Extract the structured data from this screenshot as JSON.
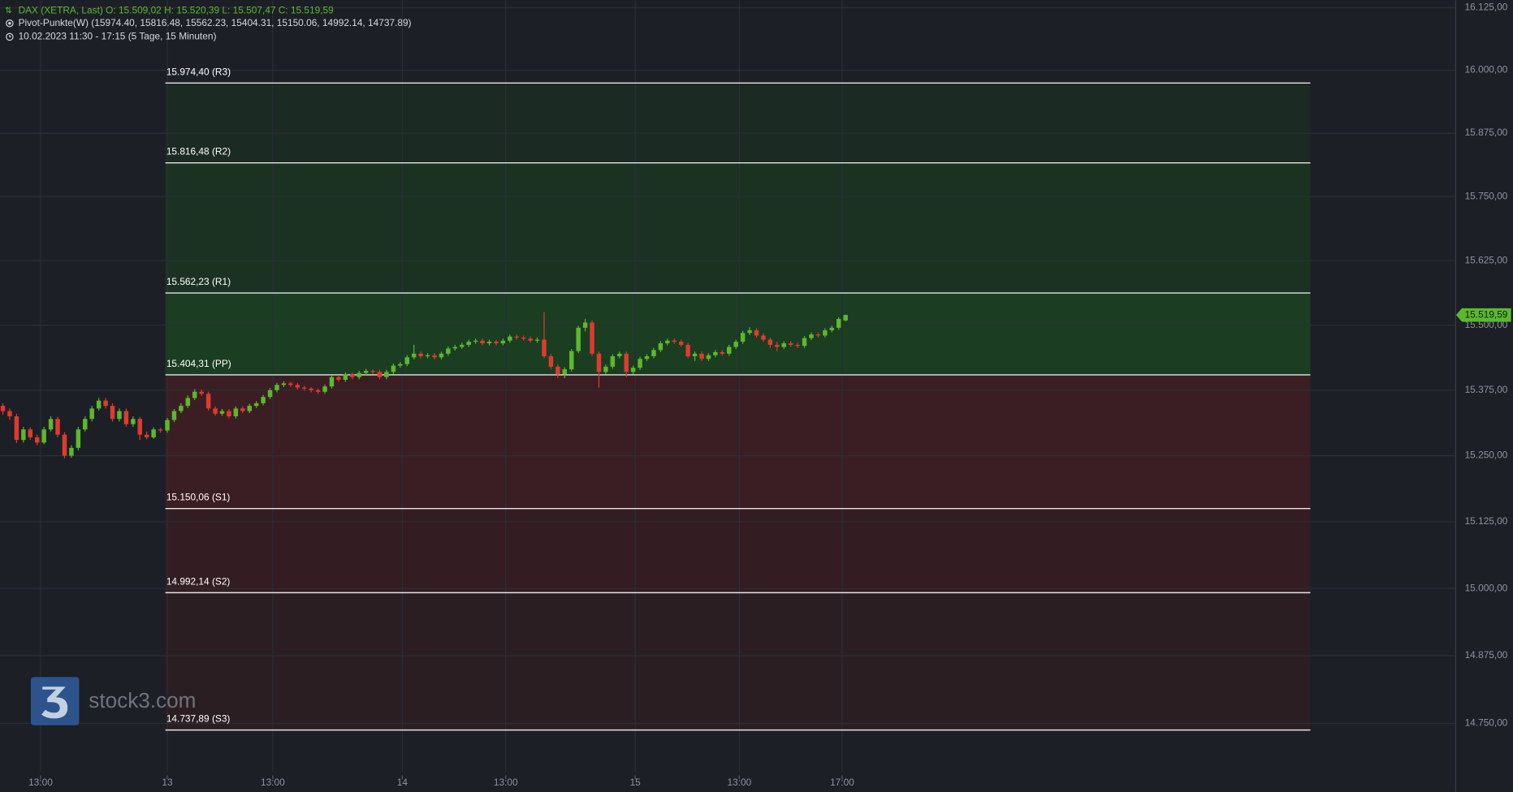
{
  "header": {
    "line1": "DAX (XETRA, Last)  O: 15.509,02  H: 15.520,39  L: 15.507,47  C: 15.519,59",
    "line2": "Pivot-Punkte(W)  (15974.40,  15816.48,  15562.23,  15404.31,  15150.06,  14992.14,  14737.89)",
    "line3": "10.02.2023 11:30 - 17:15   (5 Tage, 15 Minuten)"
  },
  "watermark": "stock3.com",
  "chart_data": {
    "type": "candlestick",
    "log_scale": true,
    "grid": true,
    "up_color": "#5cb82f",
    "down_color": "#e03a2e",
    "ylim": [
      14625,
      16140
    ],
    "xlim": [
      -0.42,
      211.97
    ],
    "yticks": [
      {
        "value": 16125,
        "label": "16.125,00"
      },
      {
        "value": 16000,
        "label": "16.000,00"
      },
      {
        "value": 15875,
        "label": "15.875,00"
      },
      {
        "value": 15750,
        "label": "15.750,00"
      },
      {
        "value": 15625,
        "label": "15.625,00"
      },
      {
        "value": 15500,
        "label": "15.500,00"
      },
      {
        "value": 15375,
        "label": "15.375,00"
      },
      {
        "value": 15250,
        "label": "15.250,00"
      },
      {
        "value": 15125,
        "label": "15.125,00"
      },
      {
        "value": 15000,
        "label": "15.000,00"
      },
      {
        "value": 14875,
        "label": "14.875,00"
      },
      {
        "value": 14750,
        "label": "14.750,00"
      }
    ],
    "xticks": [
      {
        "value": 5.5,
        "label": "13:00"
      },
      {
        "value": 24,
        "label": "13"
      },
      {
        "value": 39.4,
        "label": "13:00"
      },
      {
        "value": 58.3,
        "label": "14"
      },
      {
        "value": 73.4,
        "label": "13:00"
      },
      {
        "value": 92.3,
        "label": "15"
      },
      {
        "value": 107.5,
        "label": "13:00"
      },
      {
        "value": 122.5,
        "label": "17:00"
      }
    ],
    "levels": [
      {
        "value": 15974.4,
        "label": "15.974,40 (R3)"
      },
      {
        "value": 15816.48,
        "label": "15.816,48 (R2)"
      },
      {
        "value": 15562.23,
        "label": "15.562,23 (R1)"
      },
      {
        "value": 15404.31,
        "label": "15.404,31 (PP)"
      },
      {
        "value": 15150.06,
        "label": "15.150,06 (S1)"
      },
      {
        "value": 14992.14,
        "label": "14.992,14 (S2)"
      },
      {
        "value": 14737.89,
        "label": "14.737,89 (S3)"
      }
    ],
    "zone_colors": [
      "#1b2a22",
      "#1b3223",
      "#1b3d22",
      "#3b1e23",
      "#331d22",
      "#2b1e23"
    ],
    "current_price_label": "15.519,59",
    "candles": [
      [
        15345,
        15350,
        15328,
        15335
      ],
      [
        15335,
        15340,
        15318,
        15325
      ],
      [
        15325,
        15330,
        15274,
        15280
      ],
      [
        15280,
        15305,
        15275,
        15300
      ],
      [
        15300,
        15304,
        15280,
        15285
      ],
      [
        15285,
        15290,
        15270,
        15275
      ],
      [
        15275,
        15305,
        15272,
        15300
      ],
      [
        15300,
        15325,
        15296,
        15320
      ],
      [
        15320,
        15324,
        15285,
        15290
      ],
      [
        15290,
        15295,
        15245,
        15250
      ],
      [
        15250,
        15270,
        15246,
        15265
      ],
      [
        15265,
        15305,
        15260,
        15300
      ],
      [
        15300,
        15325,
        15296,
        15320
      ],
      [
        15320,
        15345,
        15315,
        15340
      ],
      [
        15340,
        15360,
        15336,
        15355
      ],
      [
        15355,
        15360,
        15340,
        15345
      ],
      [
        15345,
        15350,
        15315,
        15320
      ],
      [
        15320,
        15340,
        15315,
        15335
      ],
      [
        15335,
        15340,
        15305,
        15310
      ],
      [
        15310,
        15325,
        15305,
        15320
      ],
      [
        15320,
        15324,
        15280,
        15290
      ],
      [
        15290,
        15296,
        15281,
        15285
      ],
      [
        15285,
        15304,
        15282,
        15300
      ],
      [
        15300,
        15303,
        15294,
        15298
      ],
      [
        15298,
        15322,
        15294,
        15318
      ],
      [
        15318,
        15339,
        15314,
        15335
      ],
      [
        15335,
        15350,
        15331,
        15345
      ],
      [
        15345,
        15365,
        15341,
        15360
      ],
      [
        15360,
        15377,
        15356,
        15372
      ],
      [
        15372,
        15376,
        15364,
        15368
      ],
      [
        15368,
        15372,
        15336,
        15340
      ],
      [
        15340,
        15344,
        15326,
        15330
      ],
      [
        15330,
        15339,
        15326,
        15335
      ],
      [
        15335,
        15339,
        15321,
        15325
      ],
      [
        15325,
        15344,
        15321,
        15340
      ],
      [
        15340,
        15344,
        15331,
        15335
      ],
      [
        15335,
        15349,
        15331,
        15345
      ],
      [
        15345,
        15354,
        15341,
        15350
      ],
      [
        15350,
        15366,
        15346,
        15362
      ],
      [
        15362,
        15379,
        15358,
        15375
      ],
      [
        15375,
        15389,
        15371,
        15385
      ],
      [
        15385,
        15392,
        15381,
        15388
      ],
      [
        15388,
        15391,
        15381,
        15385
      ],
      [
        15385,
        15389,
        15376,
        15380
      ],
      [
        15380,
        15383,
        15374,
        15378
      ],
      [
        15378,
        15381,
        15371,
        15375
      ],
      [
        15375,
        15378,
        15368,
        15372
      ],
      [
        15372,
        15386,
        15368,
        15382
      ],
      [
        15382,
        15404,
        15378,
        15400
      ],
      [
        15400,
        15404,
        15391,
        15395
      ],
      [
        15395,
        15409,
        15391,
        15405
      ],
      [
        15405,
        15409,
        15396,
        15400
      ],
      [
        15400,
        15412,
        15396,
        15408
      ],
      [
        15408,
        15416,
        15404,
        15412
      ],
      [
        15412,
        15415,
        15406,
        15410
      ],
      [
        15410,
        15414,
        15396,
        15400
      ],
      [
        15400,
        15414,
        15396,
        15410
      ],
      [
        15410,
        15426,
        15406,
        15422
      ],
      [
        15422,
        15429,
        15418,
        15425
      ],
      [
        15425,
        15442,
        15421,
        15438
      ],
      [
        15438,
        15462,
        15434,
        15445
      ],
      [
        15445,
        15449,
        15436,
        15440
      ],
      [
        15440,
        15446,
        15436,
        15442
      ],
      [
        15442,
        15446,
        15434,
        15438
      ],
      [
        15438,
        15449,
        15434,
        15445
      ],
      [
        15445,
        15459,
        15441,
        15455
      ],
      [
        15455,
        15462,
        15451,
        15458
      ],
      [
        15458,
        15466,
        15454,
        15462
      ],
      [
        15462,
        15472,
        15458,
        15468
      ],
      [
        15468,
        15474,
        15464,
        15470
      ],
      [
        15470,
        15474,
        15461,
        15465
      ],
      [
        15465,
        15472,
        15461,
        15468
      ],
      [
        15468,
        15472,
        15461,
        15465
      ],
      [
        15465,
        15474,
        15461,
        15470
      ],
      [
        15470,
        15482,
        15466,
        15478
      ],
      [
        15478,
        15482,
        15472,
        15476
      ],
      [
        15476,
        15480,
        15470,
        15474
      ],
      [
        15474,
        15478,
        15466,
        15470
      ],
      [
        15470,
        15476,
        15466,
        15472
      ],
      [
        15472,
        15525,
        15436,
        15440
      ],
      [
        15440,
        15444,
        15416,
        15420
      ],
      [
        15420,
        15424,
        15398,
        15405
      ],
      [
        15405,
        15419,
        15398,
        15415
      ],
      [
        15415,
        15454,
        15411,
        15450
      ],
      [
        15450,
        15499,
        15446,
        15495
      ],
      [
        15495,
        15512,
        15488,
        15505
      ],
      [
        15505,
        15509,
        15441,
        15445
      ],
      [
        15445,
        15449,
        15380,
        15410
      ],
      [
        15410,
        15424,
        15406,
        15420
      ],
      [
        15420,
        15444,
        15416,
        15440
      ],
      [
        15440,
        15449,
        15436,
        15445
      ],
      [
        15445,
        15449,
        15400,
        15410
      ],
      [
        15410,
        15422,
        15406,
        15418
      ],
      [
        15418,
        15439,
        15414,
        15435
      ],
      [
        15435,
        15444,
        15431,
        15440
      ],
      [
        15440,
        15456,
        15436,
        15452
      ],
      [
        15452,
        15469,
        15448,
        15465
      ],
      [
        15465,
        15474,
        15461,
        15470
      ],
      [
        15470,
        15474,
        15464,
        15468
      ],
      [
        15468,
        15472,
        15458,
        15462
      ],
      [
        15462,
        15466,
        15436,
        15440
      ],
      [
        15440,
        15449,
        15431,
        15445
      ],
      [
        15445,
        15449,
        15431,
        15435
      ],
      [
        15435,
        15446,
        15431,
        15442
      ],
      [
        15442,
        15452,
        15438,
        15448
      ],
      [
        15448,
        15452,
        15441,
        15445
      ],
      [
        15445,
        15462,
        15441,
        15458
      ],
      [
        15458,
        15472,
        15454,
        15468
      ],
      [
        15468,
        15489,
        15464,
        15485
      ],
      [
        15485,
        15496,
        15481,
        15490
      ],
      [
        15490,
        15494,
        15476,
        15480
      ],
      [
        15480,
        15484,
        15468,
        15472
      ],
      [
        15472,
        15476,
        15456,
        15462
      ],
      [
        15462,
        15468,
        15450,
        15458
      ],
      [
        15458,
        15469,
        15454,
        15465
      ],
      [
        15465,
        15469,
        15458,
        15462
      ],
      [
        15462,
        15466,
        15456,
        15460
      ],
      [
        15460,
        15479,
        15456,
        15475
      ],
      [
        15475,
        15486,
        15471,
        15482
      ],
      [
        15482,
        15486,
        15476,
        15480
      ],
      [
        15480,
        15494,
        15476,
        15490
      ],
      [
        15490,
        15499,
        15486,
        15495
      ],
      [
        15495,
        15515,
        15491,
        15512
      ],
      [
        15509.02,
        15520.39,
        15507.47,
        15519.59
      ]
    ]
  }
}
